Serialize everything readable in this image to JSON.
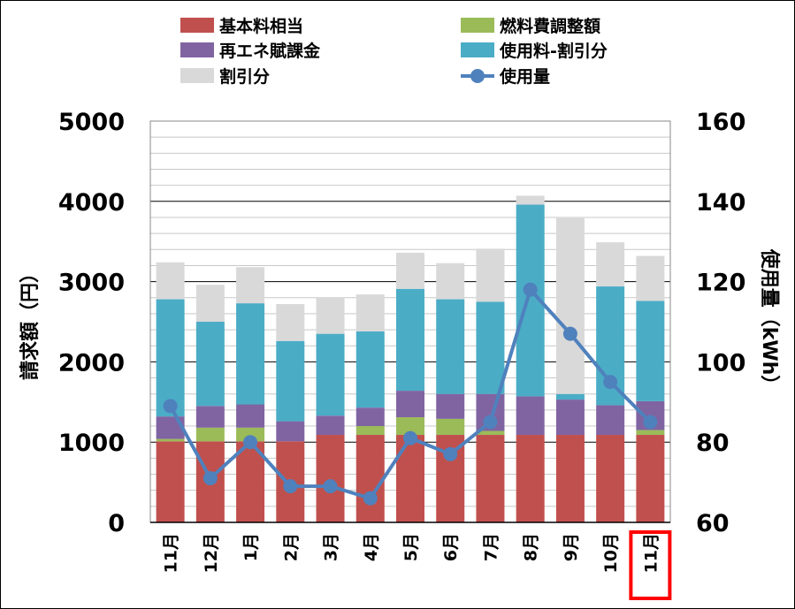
{
  "chart_data": {
    "type": "bar",
    "stacked": true,
    "categories": [
      "11月",
      "12月",
      "1月",
      "2月",
      "3月",
      "4月",
      "5月",
      "6月",
      "7月",
      "8月",
      "9月",
      "10月",
      "11月"
    ],
    "highlighted_category_index": 12,
    "highlight_color": "#ff0000",
    "ylabel": "請求額（円）",
    "y2label": "使用量（kWh）",
    "ylim": [
      0,
      5000
    ],
    "y2lim": [
      60,
      160
    ],
    "yticks": [
      "0",
      "1000",
      "2000",
      "3000",
      "4000",
      "5000"
    ],
    "y2ticks": [
      "60",
      "80",
      "100",
      "120",
      "140",
      "160"
    ],
    "grid": true,
    "legend_position": "top",
    "series": [
      {
        "name": "基本料相当",
        "kind": "bar",
        "color": "#c0504d",
        "values": [
          1010,
          1010,
          1010,
          1010,
          1090,
          1090,
          1090,
          1090,
          1090,
          1090,
          1090,
          1090,
          1090
        ]
      },
      {
        "name": "燃料費調整額",
        "kind": "bar",
        "color": "#9bbb59",
        "values": [
          30,
          170,
          170,
          0,
          0,
          110,
          220,
          200,
          50,
          0,
          0,
          0,
          60
        ]
      },
      {
        "name": "再エネ賦課金",
        "kind": "bar",
        "color": "#8064a2",
        "values": [
          280,
          270,
          290,
          250,
          240,
          230,
          330,
          310,
          460,
          480,
          440,
          370,
          360
        ]
      },
      {
        "name": "使用料-割引分",
        "kind": "bar",
        "color": "#4bacc6",
        "values": [
          1460,
          1050,
          1260,
          1000,
          1020,
          950,
          1270,
          1180,
          1150,
          2390,
          70,
          1480,
          1250
        ]
      },
      {
        "name": "割引分",
        "kind": "bar",
        "color": "#d9d9d9",
        "values": [
          460,
          460,
          450,
          460,
          450,
          460,
          450,
          450,
          660,
          110,
          2190,
          550,
          560
        ]
      },
      {
        "name": "使用量",
        "kind": "line",
        "axis": "right",
        "color": "#4f81bd",
        "values": [
          89,
          71,
          80,
          69,
          69,
          66,
          81,
          77,
          85,
          118,
          107,
          95,
          85
        ]
      }
    ]
  }
}
